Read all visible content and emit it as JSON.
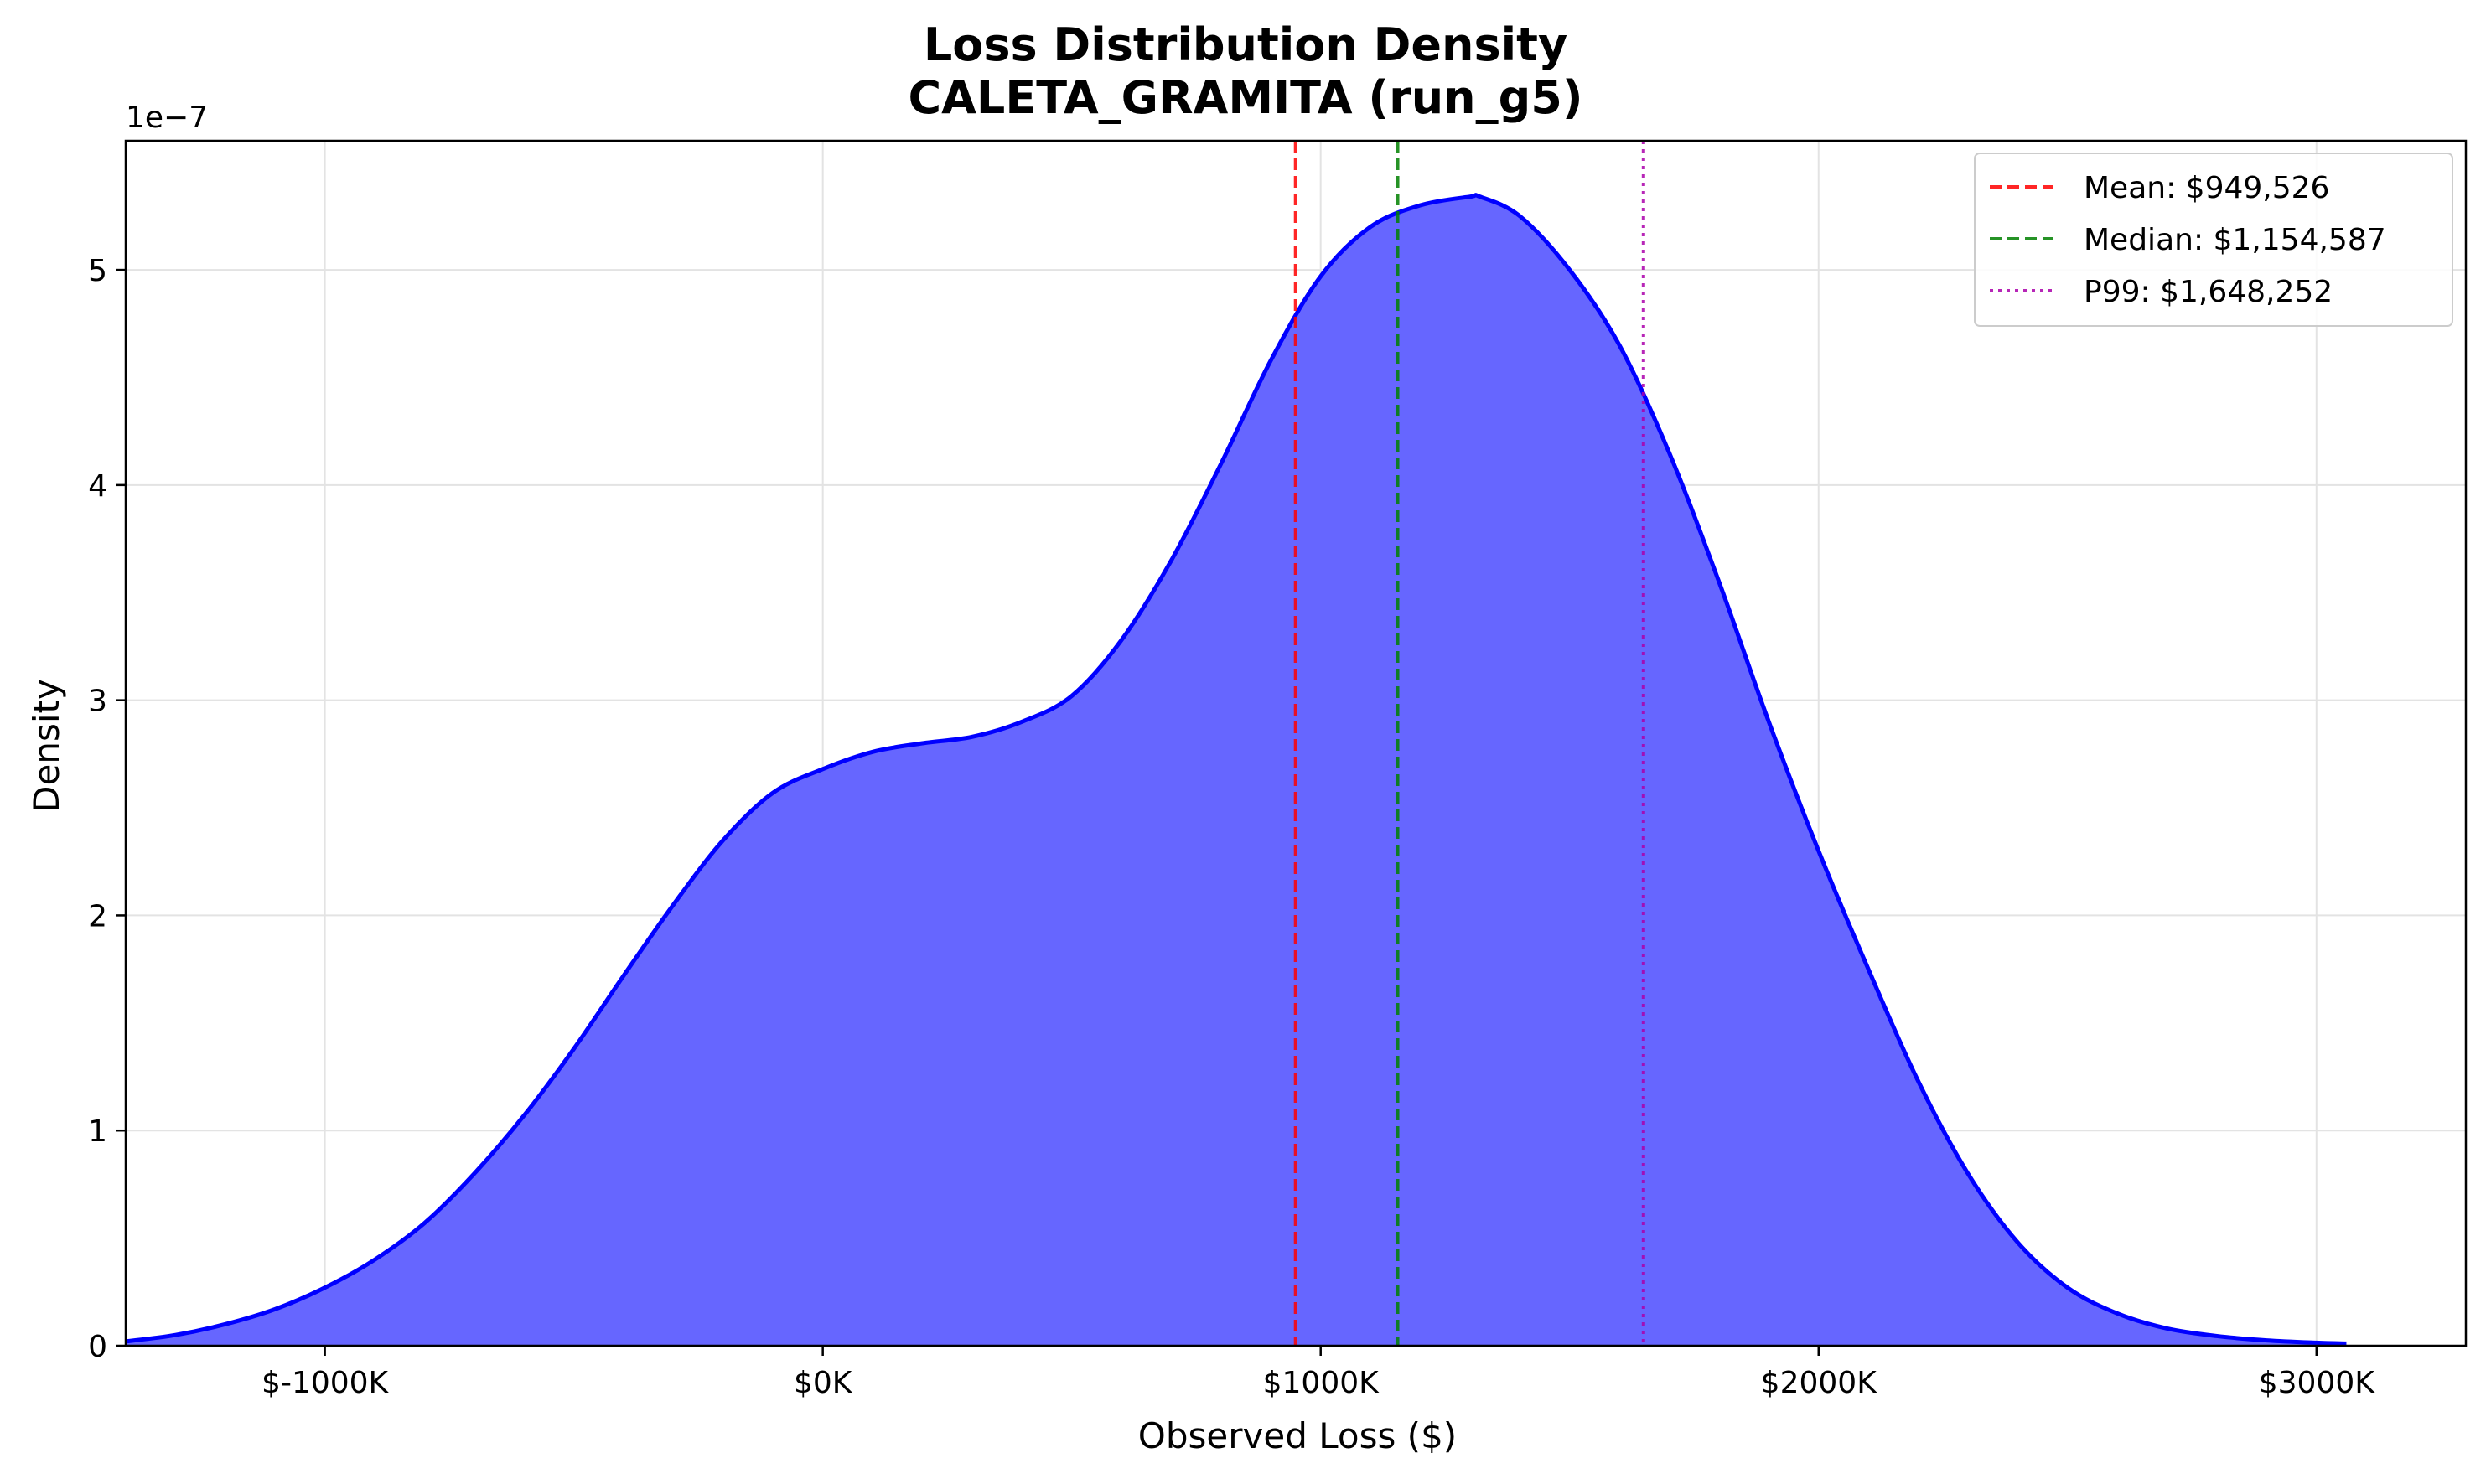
{
  "chart_data": {
    "type": "area",
    "title": "Loss Distribution Density",
    "subtitle": "CALETA_GRAMITA (run_g5)",
    "xlabel": "Observed Loss ($)",
    "ylabel": "Density",
    "y_offset_label": "1e−7",
    "xlim": [
      -1400000,
      3300000
    ],
    "ylim": [
      0,
      5.6
    ],
    "x_ticks": [
      -1000000,
      0,
      1000000,
      2000000,
      3000000
    ],
    "x_tick_labels": [
      "$-1000K",
      "$0K",
      "$1000K",
      "$2000K",
      "$3000K"
    ],
    "y_ticks": [
      0,
      1,
      2,
      3,
      4,
      5
    ],
    "y_tick_labels": [
      "0",
      "1",
      "2",
      "3",
      "4",
      "5"
    ],
    "grid": true,
    "legend_position": "top-right",
    "series": [
      {
        "color": "#0000ff",
        "fill": "#6666ff",
        "x": [
          -1400000,
          -1300000,
          -1200000,
          -1100000,
          -1000000,
          -900000,
          -800000,
          -700000,
          -600000,
          -500000,
          -400000,
          -300000,
          -200000,
          -100000,
          0,
          100000,
          200000,
          300000,
          400000,
          500000,
          600000,
          700000,
          800000,
          900000,
          1000000,
          1100000,
          1200000,
          1300000,
          1320000,
          1400000,
          1500000,
          1600000,
          1700000,
          1800000,
          1900000,
          2000000,
          2100000,
          2200000,
          2300000,
          2400000,
          2500000,
          2600000,
          2700000,
          2800000,
          2900000,
          3000000,
          3060000
        ],
        "y": [
          0.02,
          0.05,
          0.1,
          0.17,
          0.27,
          0.4,
          0.57,
          0.8,
          1.07,
          1.38,
          1.72,
          2.05,
          2.35,
          2.57,
          2.68,
          2.76,
          2.8,
          2.83,
          2.9,
          3.02,
          3.28,
          3.65,
          4.1,
          4.58,
          4.97,
          5.2,
          5.3,
          5.34,
          5.34,
          5.25,
          5.0,
          4.65,
          4.15,
          3.55,
          2.9,
          2.3,
          1.75,
          1.23,
          0.8,
          0.48,
          0.27,
          0.15,
          0.08,
          0.045,
          0.025,
          0.014,
          0.01
        ]
      }
    ],
    "reference_lines": [
      {
        "label": "Mean: $949,526",
        "x": 949526,
        "color": "#ff0000",
        "style": "dashed"
      },
      {
        "label": "Median: $1,154,587",
        "x": 1154587,
        "color": "#008000",
        "style": "dashed"
      },
      {
        "label": "P99: $1,648,252",
        "x": 1648252,
        "color": "#aa00aa",
        "style": "dotted"
      }
    ]
  }
}
